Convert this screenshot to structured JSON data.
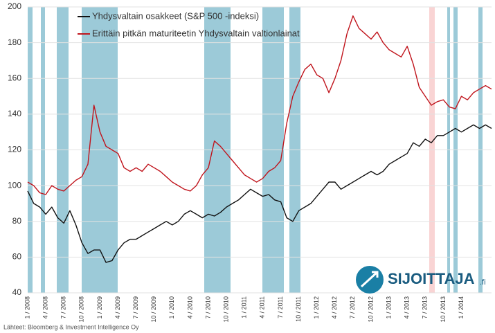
{
  "chart_data": {
    "type": "line",
    "categories": [
      "1 / 2008",
      null,
      null,
      "4 / 2008",
      null,
      null,
      "7 / 2008",
      null,
      null,
      "10 / 2008",
      null,
      null,
      "1 / 2009",
      null,
      null,
      "4 / 2009",
      null,
      null,
      "7 / 2009",
      null,
      null,
      "10 / 2009",
      null,
      null,
      "1 / 2010",
      null,
      null,
      "4 / 2010",
      null,
      null,
      "7 / 2010",
      null,
      null,
      "10 / 2010",
      null,
      null,
      "1 / 2011",
      null,
      null,
      "4 / 2011",
      null,
      null,
      "7 / 2011",
      null,
      null,
      "10 / 2011",
      null,
      null,
      "1 / 2012",
      null,
      null,
      "4 / 2012",
      null,
      null,
      "7 / 2012",
      null,
      null,
      "10 / 2012",
      null,
      null,
      "1 / 2013",
      null,
      null,
      "4 / 2013",
      null,
      null,
      "7 / 2013",
      null,
      null,
      "10 / 2013",
      null,
      null,
      "1 / 2014",
      null,
      null,
      null,
      null,
      null
    ],
    "series": [
      {
        "name": "Yhdysvaltain osakkeet (S&P 500 -indeksi)",
        "color": "#111111",
        "values": [
          97,
          90,
          88,
          84,
          88,
          82,
          79,
          86,
          78,
          68,
          62,
          64,
          64,
          57,
          58,
          64,
          68,
          70,
          70,
          72,
          74,
          76,
          78,
          80,
          78,
          80,
          84,
          86,
          84,
          82,
          84,
          83,
          85,
          88,
          90,
          92,
          95,
          98,
          96,
          94,
          95,
          92,
          91,
          82,
          80,
          86,
          88,
          90,
          94,
          98,
          102,
          102,
          98,
          100,
          102,
          104,
          106,
          108,
          106,
          108,
          112,
          114,
          116,
          118,
          124,
          122,
          126,
          124,
          128,
          128,
          130,
          132,
          130,
          132,
          134,
          132,
          134,
          132
        ]
      },
      {
        "name": "Erittäin pitkän maturiteetin Yhdysvaltain valtionlainat",
        "color": "#c0141c",
        "values": [
          102,
          100,
          96,
          95,
          100,
          98,
          97,
          100,
          103,
          105,
          112,
          145,
          130,
          122,
          120,
          118,
          110,
          108,
          110,
          108,
          112,
          110,
          108,
          105,
          102,
          100,
          98,
          97,
          100,
          106,
          110,
          125,
          122,
          118,
          114,
          110,
          106,
          104,
          102,
          104,
          108,
          110,
          114,
          135,
          150,
          158,
          165,
          168,
          162,
          160,
          152,
          160,
          170,
          185,
          195,
          188,
          185,
          182,
          186,
          180,
          176,
          174,
          172,
          178,
          168,
          155,
          150,
          145,
          147,
          148,
          144,
          143,
          150,
          148,
          152,
          154,
          156,
          154
        ]
      }
    ],
    "ylim": [
      40,
      200
    ],
    "yticks": [
      40,
      60,
      80,
      100,
      120,
      140,
      160,
      180,
      200
    ],
    "grid": true,
    "source": "Lähteet: Bloomberg & Investment Intelligence Oy",
    "logo": {
      "brand": "SIJOITTAJA",
      "suffix": ".fi"
    }
  }
}
